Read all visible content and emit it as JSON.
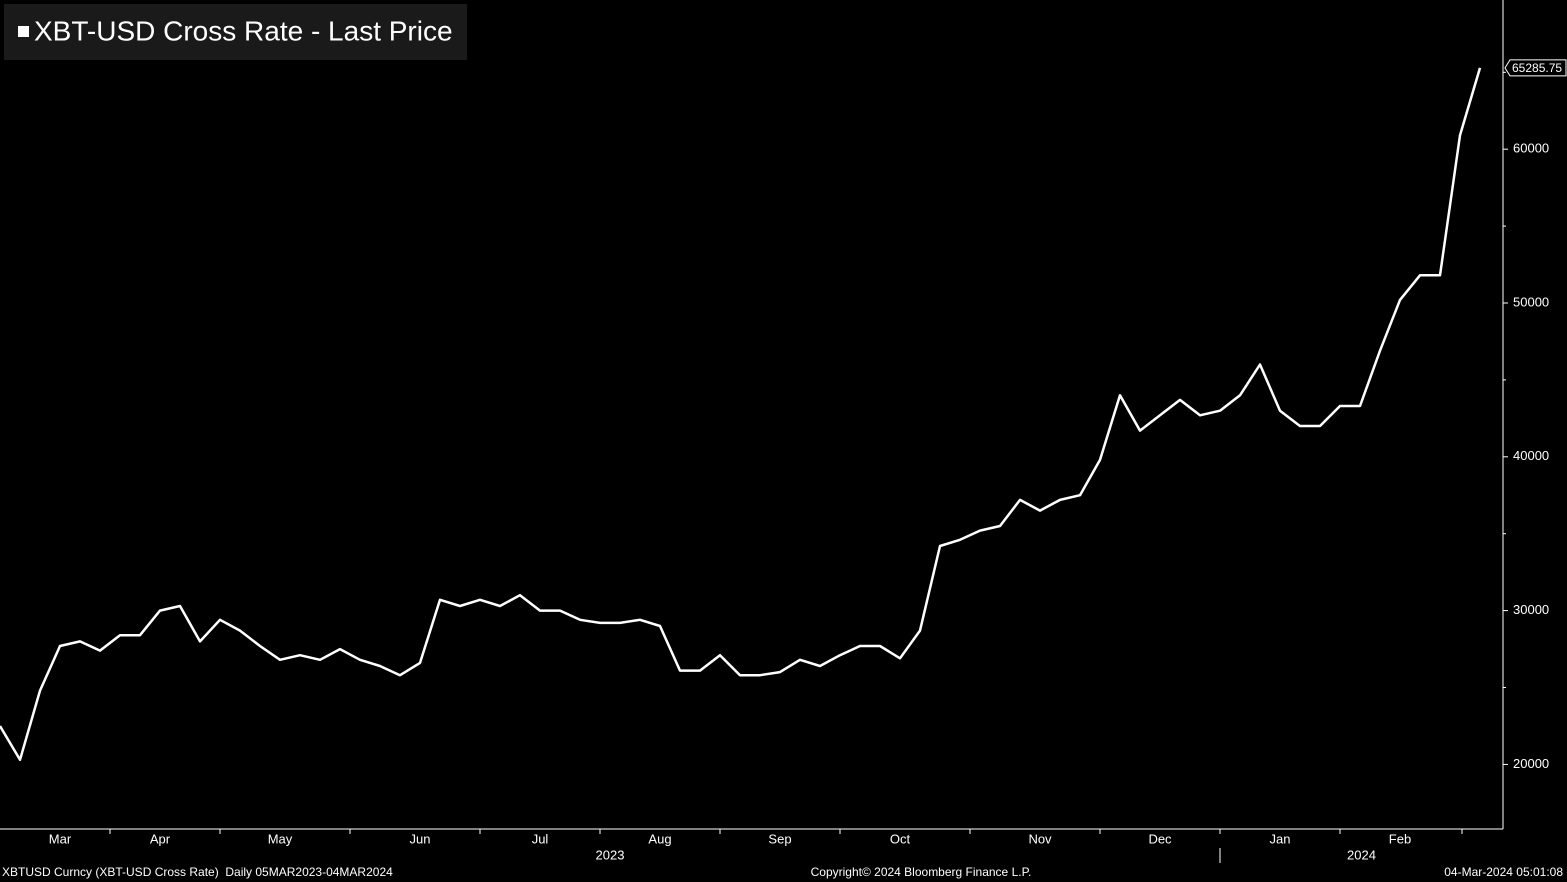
{
  "chart_data": {
    "type": "line",
    "categories": [
      null,
      null,
      null,
      "Mar",
      null,
      null,
      null,
      null,
      "Apr",
      null,
      null,
      null,
      null,
      null,
      "May",
      null,
      null,
      null,
      null,
      null,
      null,
      "Jun",
      null,
      null,
      null,
      null,
      null,
      "Jul",
      null,
      null,
      null,
      null,
      null,
      "Aug",
      null,
      null,
      null,
      null,
      null,
      "Sep",
      null,
      null,
      null,
      null,
      null,
      "Oct",
      null,
      null,
      null,
      null,
      null,
      null,
      "Nov",
      null,
      null,
      null,
      null,
      null,
      "Dec",
      null,
      null,
      null,
      null,
      null,
      "Jan",
      null,
      null,
      null,
      null,
      null,
      "Feb",
      null,
      null,
      null,
      null
    ],
    "x_groups": [
      {
        "label": "2023",
        "months": 10
      },
      {
        "label": "2024",
        "months": 2
      }
    ],
    "series": [
      {
        "name": "XBT-USD Cross Rate - Last Price",
        "color": "#ffffff",
        "values": [
          22500,
          20300,
          24800,
          27700,
          28000,
          27400,
          28400,
          28400,
          30000,
          30300,
          28000,
          29400,
          28700,
          27700,
          26800,
          27100,
          26800,
          27500,
          26800,
          26400,
          25800,
          26600,
          30700,
          30300,
          30700,
          30300,
          31000,
          30000,
          30000,
          29400,
          29200,
          29200,
          29400,
          29000,
          26100,
          26100,
          27100,
          25800,
          25800,
          26000,
          26800,
          26400,
          27100,
          27700,
          27700,
          26900,
          28700,
          34200,
          34600,
          35200,
          35500,
          37200,
          36500,
          37200,
          37500,
          39800,
          44000,
          41700,
          42700,
          43700,
          42700,
          43000,
          44000,
          46000,
          43000,
          42000,
          42000,
          43300,
          43300,
          46900,
          50200,
          51800,
          51800,
          60900,
          65285.75
        ]
      }
    ],
    "ylim": [
      15800,
      69700
    ],
    "yticks": [
      20000,
      30000,
      40000,
      50000,
      60000
    ],
    "minor_yticks": [
      25000,
      35000,
      45000,
      55000,
      65000
    ]
  },
  "footer": {
    "left": "XBTUSD Curncy (XBT-USD Cross Rate)  Daily 05MAR2023-04MAR2024",
    "center": "Copyright© 2024 Bloomberg Finance L.P.",
    "right": "04-Mar-2024 05:01:08"
  }
}
